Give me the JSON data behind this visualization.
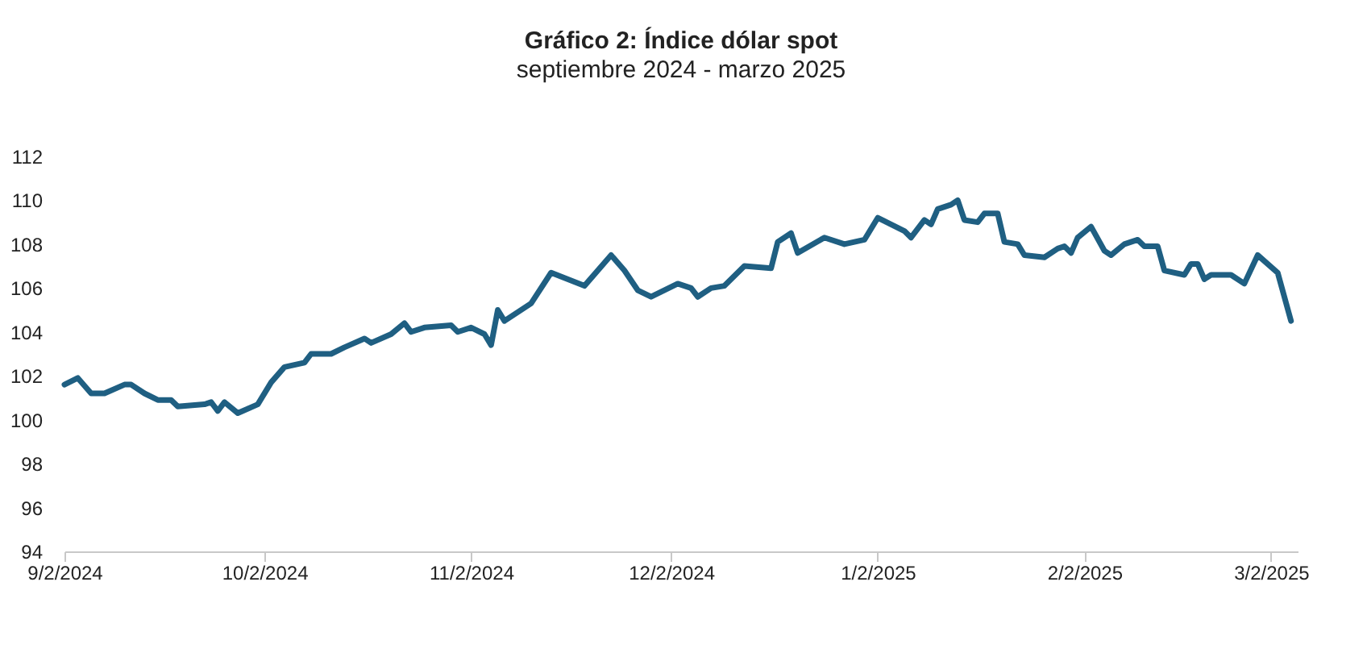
{
  "chart_data": {
    "type": "line",
    "title": "Gráfico 2: Índice dólar spot",
    "subtitle": "septiembre 2024 - marzo 2025",
    "x": [
      "2024-09-02",
      "2024-09-04",
      "2024-09-06",
      "2024-09-08",
      "2024-09-11",
      "2024-09-12",
      "2024-09-14",
      "2024-09-16",
      "2024-09-18",
      "2024-09-19",
      "2024-09-23",
      "2024-09-24",
      "2024-09-25",
      "2024-09-26",
      "2024-09-28",
      "2024-10-01",
      "2024-10-03",
      "2024-10-05",
      "2024-10-08",
      "2024-10-09",
      "2024-10-12",
      "2024-10-14",
      "2024-10-17",
      "2024-10-18",
      "2024-10-21",
      "2024-10-23",
      "2024-10-24",
      "2024-10-26",
      "2024-10-30",
      "2024-10-31",
      "2024-11-02",
      "2024-11-04",
      "2024-11-05",
      "2024-11-06",
      "2024-11-07",
      "2024-11-11",
      "2024-11-14",
      "2024-11-19",
      "2024-11-23",
      "2024-11-25",
      "2024-11-27",
      "2024-11-29",
      "2024-12-03",
      "2024-12-05",
      "2024-12-06",
      "2024-12-08",
      "2024-12-10",
      "2024-12-13",
      "2024-12-17",
      "2024-12-18",
      "2024-12-20",
      "2024-12-21",
      "2024-12-25",
      "2024-12-28",
      "2024-12-31",
      "2025-01-02",
      "2025-01-06",
      "2025-01-07",
      "2025-01-09",
      "2025-01-10",
      "2025-01-11",
      "2025-01-13",
      "2025-01-14",
      "2025-01-15",
      "2025-01-17",
      "2025-01-18",
      "2025-01-20",
      "2025-01-21",
      "2025-01-23",
      "2025-01-24",
      "2025-01-27",
      "2025-01-29",
      "2025-01-30",
      "2025-01-31",
      "2025-02-01",
      "2025-02-03",
      "2025-02-05",
      "2025-02-06",
      "2025-02-08",
      "2025-02-10",
      "2025-02-11",
      "2025-02-13",
      "2025-02-14",
      "2025-02-17",
      "2025-02-18",
      "2025-02-19",
      "2025-02-20",
      "2025-02-21",
      "2025-02-24",
      "2025-02-26",
      "2025-02-28",
      "2025-03-03",
      "2025-03-05"
    ],
    "series": [
      {
        "color": "#1f5f82",
        "values": [
          101.6,
          101.9,
          101.2,
          101.2,
          101.6,
          101.6,
          101.2,
          100.9,
          100.9,
          100.6,
          100.7,
          100.8,
          100.4,
          100.8,
          100.3,
          100.7,
          101.7,
          102.4,
          102.6,
          103.0,
          103.0,
          103.3,
          103.7,
          103.5,
          103.9,
          104.4,
          104.0,
          104.2,
          104.3,
          104.0,
          104.2,
          103.9,
          103.4,
          105.0,
          104.5,
          105.3,
          106.7,
          106.1,
          107.5,
          106.8,
          105.9,
          105.6,
          106.2,
          106.0,
          105.6,
          106.0,
          106.1,
          107.0,
          106.9,
          108.1,
          108.5,
          107.6,
          108.3,
          108.0,
          108.2,
          109.2,
          108.6,
          108.3,
          109.1,
          108.9,
          109.6,
          109.8,
          110.0,
          109.1,
          109.0,
          109.4,
          109.4,
          108.1,
          108.0,
          107.5,
          107.4,
          107.8,
          107.9,
          107.6,
          108.3,
          108.8,
          107.7,
          107.5,
          108.0,
          108.2,
          107.9,
          107.9,
          106.8,
          106.6,
          107.1,
          107.1,
          106.4,
          106.6,
          106.6,
          106.2,
          107.5,
          106.7,
          104.5
        ]
      }
    ],
    "xlim": [
      "2024-09-02",
      "2025-03-06"
    ],
    "xticks": [
      {
        "value": "2024-09-02",
        "label": "9/2/2024"
      },
      {
        "value": "2024-10-02",
        "label": "10/2/2024"
      },
      {
        "value": "2024-11-02",
        "label": "11/2/2024"
      },
      {
        "value": "2024-12-02",
        "label": "12/2/2024"
      },
      {
        "value": "2025-01-02",
        "label": "1/2/2025"
      },
      {
        "value": "2025-02-02",
        "label": "2/2/2025"
      },
      {
        "value": "2025-03-02",
        "label": "3/2/2025"
      }
    ],
    "ylim": [
      94,
      112
    ],
    "yticks": [
      94,
      96,
      98,
      100,
      102,
      104,
      106,
      108,
      110,
      112
    ],
    "grid": false,
    "marker": "none",
    "line_style": "solid"
  }
}
